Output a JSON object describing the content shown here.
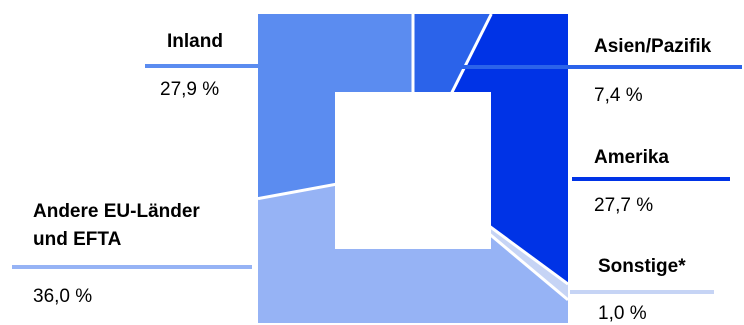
{
  "chart_data": {
    "type": "pie",
    "categories": [
      "Inland",
      "Asien/Pazifik",
      "Amerika",
      "Sonstige*",
      "Andere EU-Länder und EFTA"
    ],
    "series": [
      {
        "values": [
          27.9,
          7.4,
          27.7,
          1.0,
          36.0
        ]
      }
    ],
    "value_labels": [
      "27,9 %",
      "7,4 %",
      "27,7 %",
      "1,0 %",
      "36,0 %"
    ],
    "label_lines": {
      "andere_line1": "Andere EU-Länder",
      "andere_line2": "und EFTA"
    },
    "colors": {
      "Inland": "#5b8cf0",
      "Asien/Pazifik": "#2b63ea",
      "Amerika": "#0033e6",
      "Sonstige*": "#c6d4f5",
      "Andere EU-Länder und EFTA": "#96b3f5"
    },
    "shape": "square donut",
    "legend": "none"
  }
}
